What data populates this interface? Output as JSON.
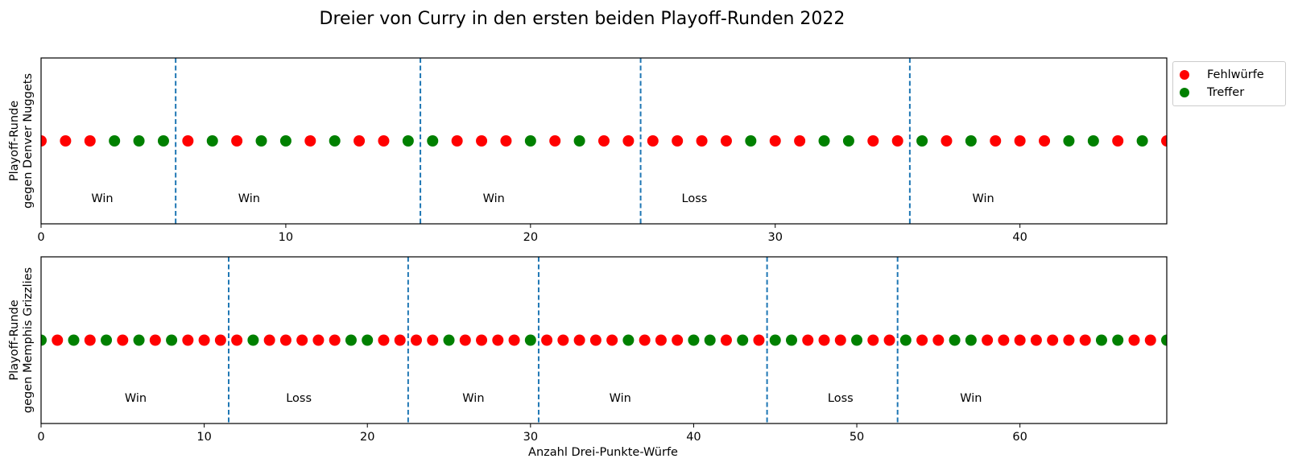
{
  "title": "Dreier von Curry in den ersten beiden Playoff-Runden 2022",
  "xlabel": "Anzahl Drei-Punkte-Würfe",
  "legend": [
    {
      "label": "Fehlwürfe",
      "color": "#ff0000"
    },
    {
      "label": "Treffer",
      "color": "#008000"
    }
  ],
  "chart_data": [
    {
      "type": "scatter",
      "ylabel": "Playoff-Runde\ngegen Denver Nuggets",
      "xlim": [
        0,
        46
      ],
      "xticks": [
        0,
        10,
        20,
        30,
        40
      ],
      "shots": [
        0,
        0,
        0,
        1,
        1,
        1,
        0,
        1,
        0,
        1,
        1,
        0,
        1,
        0,
        0,
        1,
        1,
        0,
        0,
        0,
        1,
        0,
        1,
        0,
        0,
        0,
        0,
        0,
        0,
        1,
        0,
        0,
        1,
        1,
        0,
        0,
        1,
        0,
        1,
        0,
        0,
        0,
        1,
        1,
        0,
        1,
        0
      ],
      "game_separators": [
        5.5,
        15.5,
        24.5,
        35.5
      ],
      "game_results": [
        {
          "x": 2.5,
          "label": "Win"
        },
        {
          "x": 8.5,
          "label": "Win"
        },
        {
          "x": 18.5,
          "label": "Win"
        },
        {
          "x": 26.7,
          "label": "Loss"
        },
        {
          "x": 38.5,
          "label": "Win"
        }
      ]
    },
    {
      "type": "scatter",
      "ylabel": "Playoff-Runde\ngegen Memphis Grizzlies",
      "xlim": [
        0,
        69
      ],
      "xticks": [
        0,
        10,
        20,
        30,
        40,
        50,
        60
      ],
      "shots": [
        1,
        0,
        1,
        0,
        1,
        0,
        1,
        0,
        1,
        0,
        0,
        0,
        0,
        1,
        0,
        0,
        0,
        0,
        0,
        1,
        1,
        0,
        0,
        0,
        0,
        1,
        0,
        0,
        0,
        0,
        1,
        0,
        0,
        0,
        0,
        0,
        1,
        0,
        0,
        0,
        1,
        1,
        0,
        1,
        0,
        1,
        1,
        0,
        0,
        0,
        1,
        0,
        0,
        1,
        0,
        0,
        1,
        1,
        0,
        0,
        0,
        0,
        0,
        0,
        0,
        1,
        1,
        0,
        0,
        1
      ],
      "game_separators": [
        11.5,
        22.5,
        30.5,
        44.5,
        52.5
      ],
      "game_results": [
        {
          "x": 5.8,
          "label": "Win"
        },
        {
          "x": 15.8,
          "label": "Loss"
        },
        {
          "x": 26.5,
          "label": "Win"
        },
        {
          "x": 35.5,
          "label": "Win"
        },
        {
          "x": 49.0,
          "label": "Loss"
        },
        {
          "x": 57.0,
          "label": "Win"
        }
      ]
    }
  ],
  "colors": {
    "miss": "#ff0000",
    "hit": "#008000",
    "separator": "#1f77b4"
  }
}
